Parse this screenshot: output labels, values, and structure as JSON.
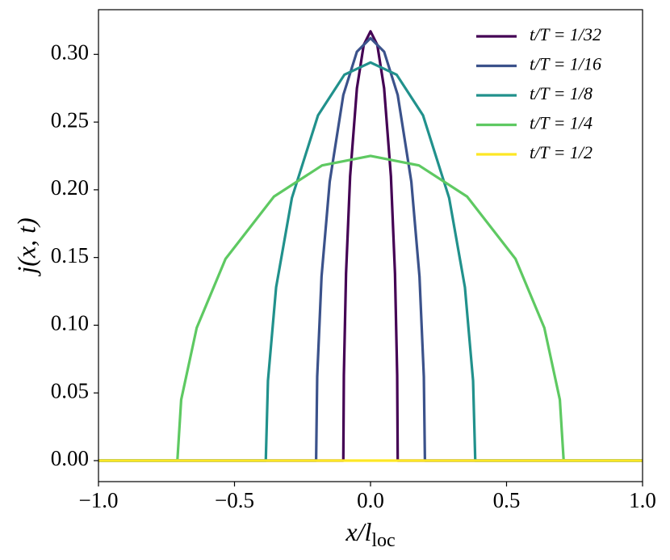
{
  "chart_data": {
    "type": "line",
    "xlabel": "x/l",
    "xlabel_sub": "loc",
    "ylabel": "j(x, t)",
    "xlim": [
      -1,
      1
    ],
    "ylim": [
      -0.0155,
      0.333
    ],
    "xticks": [
      {
        "value": -1,
        "label": "−1.0"
      },
      {
        "value": -0.5,
        "label": "−0.5"
      },
      {
        "value": 0,
        "label": "0.0"
      },
      {
        "value": 0.5,
        "label": "0.5"
      },
      {
        "value": 1,
        "label": "1.0"
      }
    ],
    "yticks": [
      {
        "value": 0,
        "label": "0.00"
      },
      {
        "value": 0.05,
        "label": "0.05"
      },
      {
        "value": 0.1,
        "label": "0.10"
      },
      {
        "value": 0.15,
        "label": "0.15"
      },
      {
        "value": 0.2,
        "label": "0.20"
      },
      {
        "value": 0.25,
        "label": "0.25"
      },
      {
        "value": 0.3,
        "label": "0.30"
      }
    ],
    "legend": "upper right",
    "series": [
      {
        "name": "t/T = 1/32",
        "color": "#440154",
        "x": [
          -1,
          -0.1,
          -0.098,
          -0.09,
          -0.075,
          -0.05,
          -0.025,
          0,
          0.025,
          0.05,
          0.075,
          0.09,
          0.098,
          0.1,
          1
        ],
        "values": [
          0,
          0,
          0.063,
          0.138,
          0.21,
          0.275,
          0.307,
          0.317,
          0.307,
          0.275,
          0.21,
          0.138,
          0.063,
          0,
          0
        ]
      },
      {
        "name": "t/T = 1/16",
        "color": "#3b528b",
        "x": [
          -1,
          -0.2,
          -0.196,
          -0.18,
          -0.15,
          -0.1,
          -0.05,
          0,
          0.05,
          0.1,
          0.15,
          0.18,
          0.196,
          0.2,
          1
        ],
        "values": [
          0,
          0,
          0.062,
          0.136,
          0.206,
          0.27,
          0.302,
          0.312,
          0.302,
          0.27,
          0.206,
          0.136,
          0.062,
          0,
          0
        ]
      },
      {
        "name": "t/T = 1/8",
        "color": "#21918c",
        "x": [
          -1,
          -0.385,
          -0.377,
          -0.347,
          -0.289,
          -0.193,
          -0.096,
          0,
          0.096,
          0.193,
          0.289,
          0.347,
          0.377,
          0.385,
          1
        ],
        "values": [
          0,
          0,
          0.059,
          0.128,
          0.194,
          0.255,
          0.285,
          0.294,
          0.285,
          0.255,
          0.194,
          0.128,
          0.059,
          0,
          0
        ]
      },
      {
        "name": "t/T = 1/4",
        "color": "#5ec962",
        "x": [
          -1,
          -0.71,
          -0.696,
          -0.639,
          -0.533,
          -0.355,
          -0.178,
          0,
          0.178,
          0.355,
          0.533,
          0.639,
          0.696,
          0.71,
          1
        ],
        "values": [
          0,
          0,
          0.045,
          0.098,
          0.149,
          0.195,
          0.218,
          0.225,
          0.218,
          0.195,
          0.149,
          0.098,
          0.045,
          0,
          0
        ]
      },
      {
        "name": "t/T = 1/2",
        "color": "#fde725",
        "x": [
          -1,
          1
        ],
        "values": [
          0,
          0
        ]
      }
    ]
  }
}
